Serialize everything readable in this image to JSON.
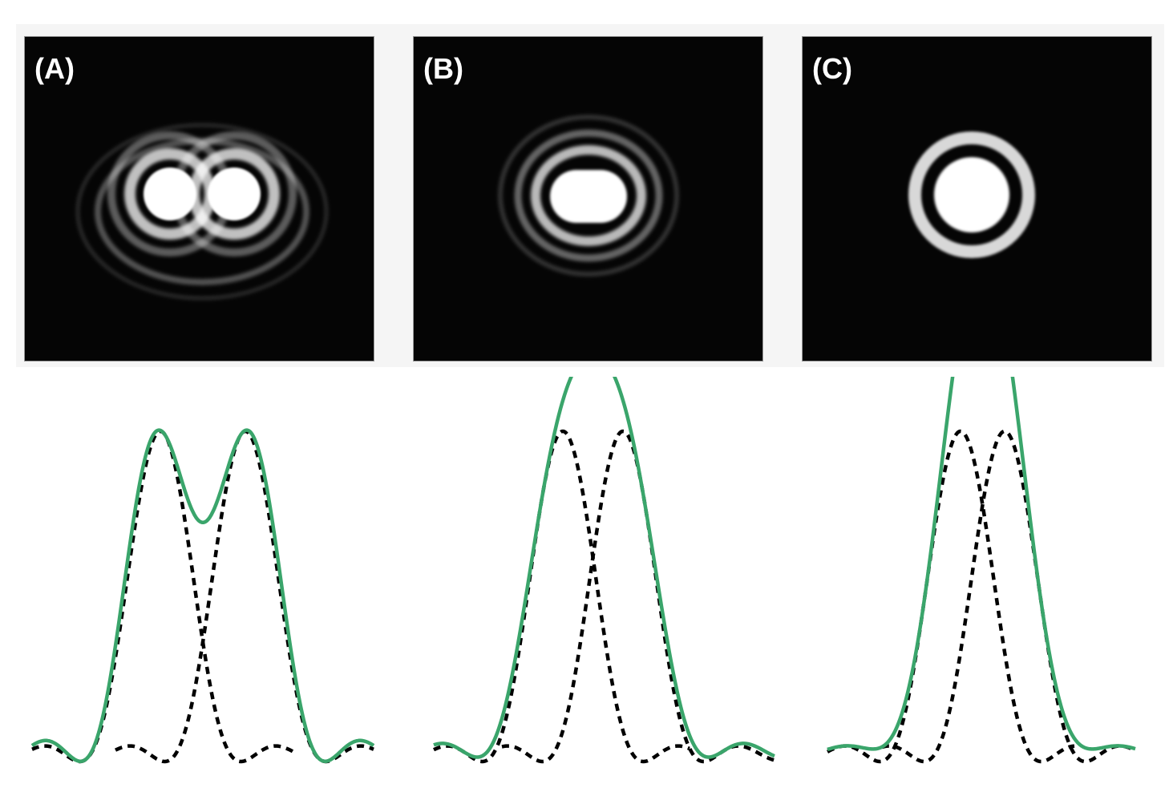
{
  "panels": [
    {
      "label": "(A)"
    },
    {
      "label": "(B)"
    },
    {
      "label": "(C)"
    }
  ],
  "colors": {
    "panel_background": "#050505",
    "fringe": "#ffffff",
    "sum_curve": "#3aa56b",
    "component_curve": "#000000"
  }
}
